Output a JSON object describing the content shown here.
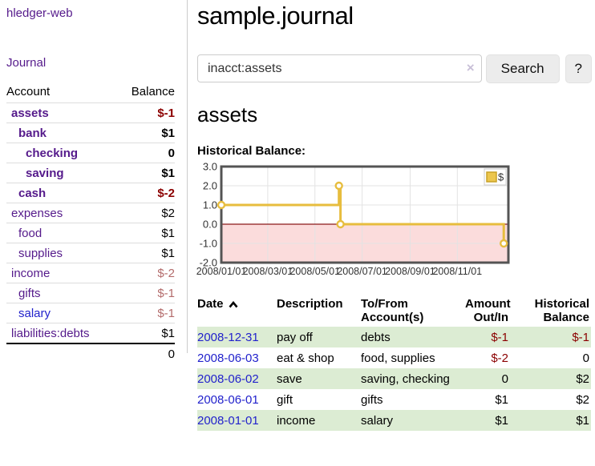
{
  "colors": {
    "purple_link": "#551a8b",
    "blue_link": "#2222cc",
    "negative_strong": "#8b0000",
    "negative_soft": "#b36b6b",
    "row_stripe_green": "#dcecd3",
    "chart_gold": "#e7bd3e",
    "chart_negative_fill": "#fbdcdc",
    "chart_zero_line": "#8b1a1a",
    "chart_border": "#545454"
  },
  "sidebar": {
    "app_title": "hledger-web",
    "journal_link": "Journal",
    "accounts": {
      "header": {
        "account": "Account",
        "balance": "Balance"
      },
      "rows": [
        {
          "name": "assets",
          "balance": "$-1",
          "depth": 0,
          "bold": true,
          "neg": "strong",
          "link": "purple"
        },
        {
          "name": "bank",
          "balance": "$1",
          "depth": 1,
          "bold": true,
          "neg": "none",
          "link": "purple"
        },
        {
          "name": "checking",
          "balance": "0",
          "depth": 2,
          "bold": true,
          "neg": "none",
          "link": "purple"
        },
        {
          "name": "saving",
          "balance": "$1",
          "depth": 2,
          "bold": true,
          "neg": "none",
          "link": "purple"
        },
        {
          "name": "cash",
          "balance": "$-2",
          "depth": 1,
          "bold": true,
          "neg": "strong",
          "link": "purple"
        },
        {
          "name": "expenses",
          "balance": "$2",
          "depth": 0,
          "bold": false,
          "neg": "none",
          "link": "purple"
        },
        {
          "name": "food",
          "balance": "$1",
          "depth": 1,
          "bold": false,
          "neg": "none",
          "link": "purple"
        },
        {
          "name": "supplies",
          "balance": "$1",
          "depth": 1,
          "bold": false,
          "neg": "none",
          "link": "purple"
        },
        {
          "name": "income",
          "balance": "$-2",
          "depth": 0,
          "bold": false,
          "neg": "soft",
          "link": "purple"
        },
        {
          "name": "gifts",
          "balance": "$-1",
          "depth": 1,
          "bold": false,
          "neg": "soft",
          "link": "purple"
        },
        {
          "name": "salary",
          "balance": "$-1",
          "depth": 1,
          "bold": false,
          "neg": "soft",
          "link": "blue"
        },
        {
          "name": "liabilities:debts",
          "balance": "$1",
          "depth": 0,
          "bold": false,
          "neg": "none",
          "link": "purple"
        }
      ],
      "total": "0"
    }
  },
  "main": {
    "title": "sample.journal",
    "search": {
      "value": "inacct:assets",
      "clear_label": "×",
      "button_label": "Search",
      "help_label": "?"
    },
    "account_heading": "assets",
    "chart_label": "Historical Balance:"
  },
  "chart_data": {
    "type": "line",
    "step": true,
    "title": "Historical Balance",
    "legend": {
      "label": "$",
      "position": "top-right"
    },
    "series": [
      {
        "name": "$",
        "points": [
          {
            "date": "2008-01-01",
            "value": 1
          },
          {
            "date": "2008-06-01",
            "value": 2
          },
          {
            "date": "2008-06-03",
            "value": 0
          },
          {
            "date": "2008-12-31",
            "value": -1
          }
        ]
      }
    ],
    "x_ticks": [
      {
        "date": "2008-01-01",
        "label": "2008/01/01"
      },
      {
        "date": "2008-03-01",
        "label": "2008/03/01"
      },
      {
        "date": "2008-05-01",
        "label": "2008/05/01"
      },
      {
        "date": "2008-07-01",
        "label": "2008/07/01"
      },
      {
        "date": "2008-09-01",
        "label": "2008/09/01"
      },
      {
        "date": "2008-11-01",
        "label": "2008/11/01"
      }
    ],
    "y_ticks": [
      {
        "value": 3,
        "label": "3.0"
      },
      {
        "value": 2,
        "label": "2.0"
      },
      {
        "value": 1,
        "label": "1.0"
      },
      {
        "value": 0,
        "label": "0.0"
      },
      {
        "value": -1,
        "label": "-1.0"
      },
      {
        "value": -2,
        "label": "-2.0"
      }
    ],
    "ylim": [
      -2,
      3
    ],
    "xlim": [
      "2008-01-01",
      "2009-01-06"
    ],
    "grid": true,
    "negative_region_shaded": true
  },
  "transactions": {
    "headers": {
      "date": "Date",
      "description": "Description",
      "account": "To/From Account(s)",
      "amount": "Amount Out/In",
      "balance": "Historical Balance"
    },
    "rows": [
      {
        "date": "2008-12-31",
        "description": "pay off",
        "accounts": "debts",
        "amount": "$-1",
        "amount_neg": true,
        "balance": "$-1",
        "balance_neg": true,
        "shaded": true
      },
      {
        "date": "2008-06-03",
        "description": "eat & shop",
        "accounts": "food, supplies",
        "amount": "$-2",
        "amount_neg": true,
        "balance": "0",
        "balance_neg": false,
        "shaded": false
      },
      {
        "date": "2008-06-02",
        "description": "save",
        "accounts": "saving, checking",
        "amount": "0",
        "amount_neg": false,
        "balance": "$2",
        "balance_neg": false,
        "shaded": true
      },
      {
        "date": "2008-06-01",
        "description": "gift",
        "accounts": "gifts",
        "amount": "$1",
        "amount_neg": false,
        "balance": "$2",
        "balance_neg": false,
        "shaded": false
      },
      {
        "date": "2008-01-01",
        "description": "income",
        "accounts": "salary",
        "amount": "$1",
        "amount_neg": false,
        "balance": "$1",
        "balance_neg": false,
        "shaded": true
      }
    ]
  }
}
